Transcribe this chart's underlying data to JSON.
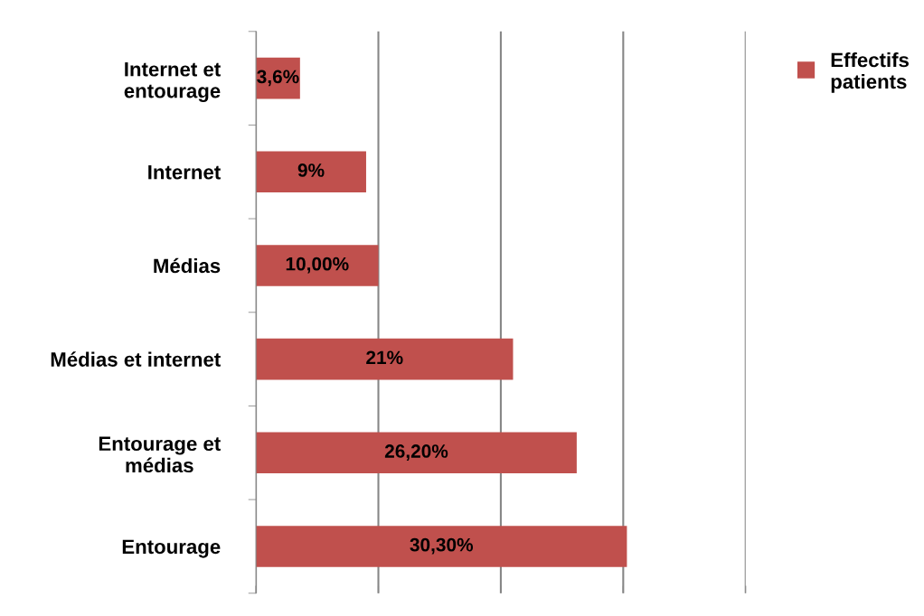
{
  "chart_data": {
    "type": "bar",
    "orientation": "horizontal",
    "categories": [
      "Internet et\nentourage",
      "Internet",
      "Médias",
      "Médias et internet",
      "Entourage et\nmédias",
      "Entourage"
    ],
    "series": [
      {
        "name": "Effectifs patients",
        "color": "#c0504d",
        "values": [
          3.6,
          9,
          10,
          21,
          26.2,
          30.3
        ],
        "value_labels": [
          "3,6%",
          "9%",
          "10,00%",
          "21%",
          "26,20%",
          "30,30%"
        ]
      }
    ],
    "xlim": [
      0,
      40
    ],
    "xticks": [
      {
        "value": 0,
        "label": null
      },
      {
        "value": 10,
        "label": null
      },
      {
        "value": 20,
        "label": null
      },
      {
        "value": 30,
        "label": null
      },
      {
        "value": 40,
        "label": null
      }
    ],
    "tick_labels": "y",
    "grid": "x",
    "legend": "top right"
  }
}
